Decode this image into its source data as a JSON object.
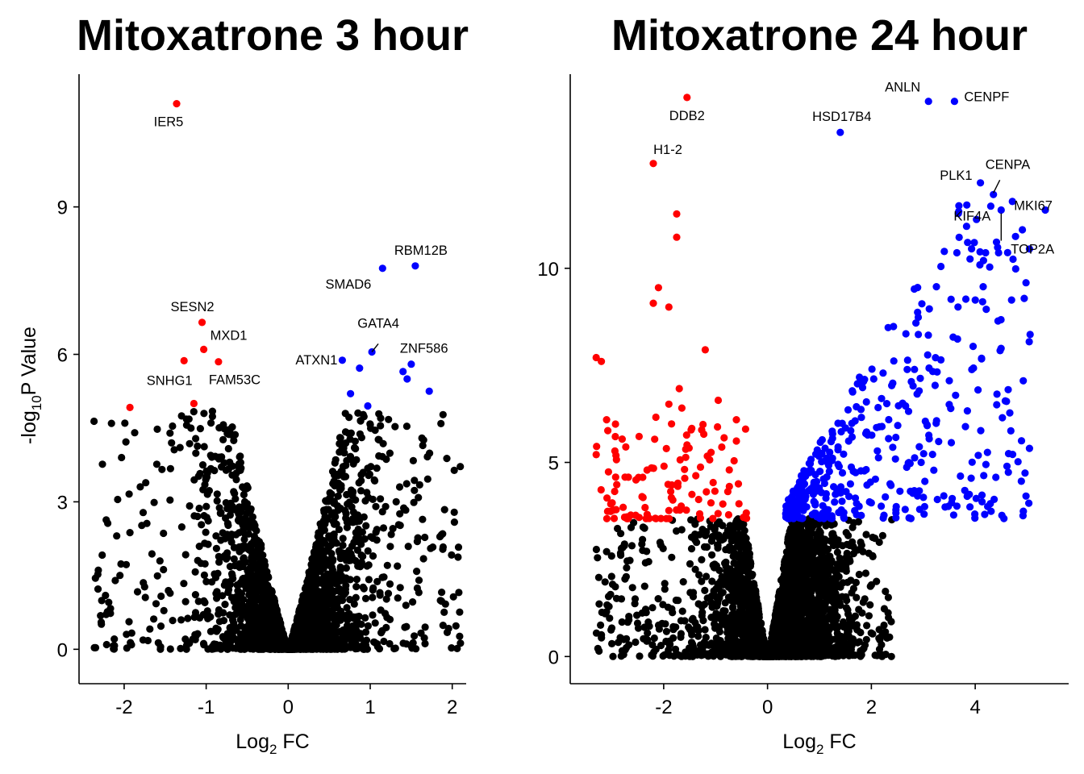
{
  "colors": {
    "down": "#ff0000",
    "up": "#0000ff",
    "ns": "#000000"
  },
  "chart_data": [
    {
      "type": "scatter",
      "title": "Mitoxatrone 3 hour",
      "xlabel": {
        "main": "Log",
        "sub": "2",
        "tail": " FC"
      },
      "ylabel": {
        "main": "-log",
        "sub": "10",
        "tail": "P Value"
      },
      "xlim": [
        -2.55,
        2.17
      ],
      "ylim": [
        -0.7,
        11.7
      ],
      "xticks": [
        -2,
        -1,
        0,
        1,
        2
      ],
      "xtick_labels": [
        "-2",
        "-1",
        "0",
        "1",
        "2"
      ],
      "yticks": [
        0,
        3,
        6,
        9
      ],
      "ytick_labels": [
        "0",
        "3",
        "6",
        "9"
      ],
      "down_points": [
        [
          -1.36,
          11.1
        ],
        [
          -1.05,
          6.65
        ],
        [
          -1.03,
          6.1
        ],
        [
          -1.27,
          5.87
        ],
        [
          -0.85,
          5.85
        ],
        [
          -1.15,
          5.0
        ],
        [
          -1.93,
          4.92
        ]
      ],
      "up_points": [
        [
          1.55,
          7.8
        ],
        [
          1.15,
          7.75
        ],
        [
          1.02,
          6.05
        ],
        [
          0.66,
          5.88
        ],
        [
          0.87,
          5.72
        ],
        [
          1.4,
          5.65
        ],
        [
          1.5,
          5.8
        ],
        [
          1.45,
          5.5
        ],
        [
          0.76,
          5.2
        ],
        [
          0.97,
          4.95
        ],
        [
          1.72,
          5.25
        ]
      ],
      "ns_cloud": {
        "n": 2600,
        "seed": 11,
        "xrange": [
          -2.4,
          2.1
        ],
        "max_p": 4.85
      },
      "annotations": [
        {
          "text": "IER5",
          "x": -1.36,
          "y": 11.1
        },
        {
          "text": "SESN2",
          "x": -1.05,
          "y": 6.65
        },
        {
          "text": "MXD1",
          "x": -1.03,
          "y": 6.1
        },
        {
          "text": "SNHG1",
          "x": -1.27,
          "y": 5.87
        },
        {
          "text": "FAM53C",
          "x": -0.85,
          "y": 5.85
        },
        {
          "text": "RBM12B",
          "x": 1.55,
          "y": 7.8
        },
        {
          "text": "SMAD6",
          "x": 1.15,
          "y": 7.75
        },
        {
          "text": "GATA4",
          "x": 1.02,
          "y": 6.05
        },
        {
          "text": "ATXN1",
          "x": 0.66,
          "y": 5.88
        },
        {
          "text": "ZNF586",
          "x": 1.5,
          "y": 5.8
        }
      ]
    },
    {
      "type": "scatter",
      "title": "Mitoxatrone 24 hour",
      "xlabel": {
        "main": "Log",
        "sub": "2",
        "tail": " FC"
      },
      "ylabel": {
        "main": "",
        "sub": "",
        "tail": ""
      },
      "xlim": [
        -3.8,
        5.8
      ],
      "ylim": [
        -0.7,
        15.0
      ],
      "xticks": [
        -2,
        0,
        2,
        4
      ],
      "xtick_labels": [
        "-2",
        "0",
        "2",
        "4"
      ],
      "yticks": [
        0,
        5,
        10
      ],
      "ytick_labels": [
        "0",
        "5",
        "10"
      ],
      "down_points": [
        [
          -1.55,
          14.4
        ],
        [
          -2.2,
          12.7
        ],
        [
          -1.75,
          11.4
        ],
        [
          -1.75,
          10.8
        ],
        [
          -2.1,
          9.5
        ],
        [
          -2.2,
          9.1
        ],
        [
          -1.9,
          9.0
        ],
        [
          -1.2,
          7.9
        ],
        [
          -3.3,
          7.7
        ],
        [
          -3.2,
          7.6
        ],
        [
          -1.7,
          6.9
        ],
        [
          -3.1,
          6.1
        ],
        [
          -1.9,
          6.5
        ],
        [
          -1.65,
          6.4
        ],
        [
          -0.95,
          6.6
        ],
        [
          -0.6,
          6.1
        ],
        [
          -3.3,
          5.2
        ],
        [
          -2.8,
          5.6
        ],
        [
          -1.55,
          5.45
        ]
      ],
      "up_points": [
        [
          3.1,
          14.3
        ],
        [
          3.6,
          14.3
        ],
        [
          1.4,
          13.5
        ],
        [
          4.1,
          12.2
        ],
        [
          4.35,
          11.9
        ],
        [
          4.5,
          11.5
        ],
        [
          4.3,
          11.6
        ],
        [
          5.35,
          11.5
        ],
        [
          4.45,
          10.4
        ],
        [
          4.2,
          10.4
        ]
      ],
      "red_cloud": {
        "n": 110,
        "seed": 23,
        "xrange": [
          -3.3,
          -0.4
        ],
        "pmin": 3.55,
        "pmax": 6.2
      },
      "blue_cloud": {
        "n": 430,
        "seed": 37,
        "xrange": [
          0.35,
          5.1
        ],
        "pmin": 3.55,
        "pmax": 11.8
      },
      "ns_cloud": {
        "n": 3200,
        "seed": 53,
        "xrange": [
          -3.3,
          2.4
        ],
        "max_p": 3.55
      },
      "annotations": [
        {
          "text": "ANLN",
          "x": 3.1,
          "y": 14.3
        },
        {
          "text": "CENPF",
          "x": 3.6,
          "y": 14.3
        },
        {
          "text": "DDB2",
          "x": -1.55,
          "y": 14.4
        },
        {
          "text": "HSD17B4",
          "x": 1.4,
          "y": 13.5
        },
        {
          "text": "H1-2",
          "x": -2.2,
          "y": 12.7
        },
        {
          "text": "CENPA",
          "x": 4.35,
          "y": 11.9
        },
        {
          "text": "PLK1",
          "x": 4.1,
          "y": 12.2
        },
        {
          "text": "MKI67",
          "x": 4.5,
          "y": 11.5
        },
        {
          "text": "KIF4A",
          "x": 4.3,
          "y": 11.6
        },
        {
          "text": "TOP2A",
          "x": 4.5,
          "y": 11.5
        }
      ]
    }
  ]
}
